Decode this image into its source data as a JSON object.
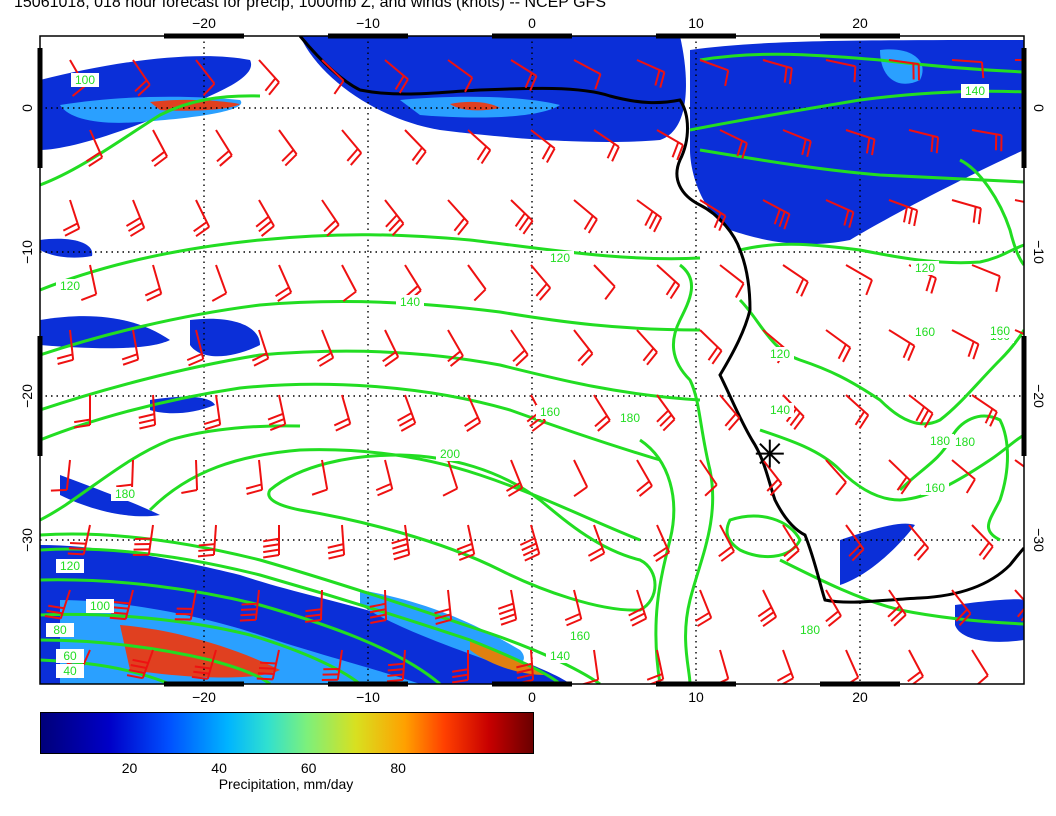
{
  "title": "15061018, 018 hour forecast for precip, 1000mb Z, and winds (knots) -- NCEP GFS",
  "map": {
    "lon_range": [
      -30,
      30
    ],
    "lat_range": [
      -40,
      5
    ],
    "x_ticks": [
      {
        "value": -20,
        "label": "−20"
      },
      {
        "value": -10,
        "label": "−10"
      },
      {
        "value": 0,
        "label": "0"
      },
      {
        "value": 10,
        "label": "10"
      },
      {
        "value": 20,
        "label": "20"
      }
    ],
    "y_ticks": [
      {
        "value": 0,
        "label": "0"
      },
      {
        "value": -10,
        "label": "−10"
      },
      {
        "value": -20,
        "label": "−20"
      },
      {
        "value": -30,
        "label": "−30"
      }
    ],
    "contour_color": "#22dd22",
    "barb_color": "#ee1111",
    "coast_color": "#000000",
    "contour_labels": [
      "100",
      "120",
      "120",
      "140",
      "160",
      "180",
      "200",
      "180",
      "160",
      "140",
      "120",
      "100",
      "80",
      "60",
      "40",
      "160",
      "180",
      "120",
      "140",
      "160",
      "180",
      "160",
      "120",
      "140",
      "180",
      "160"
    ],
    "marker": "station-star"
  },
  "colorbar": {
    "ticks": [
      "20",
      "40",
      "60",
      "80"
    ],
    "label": "Precipitation, mm/day"
  }
}
